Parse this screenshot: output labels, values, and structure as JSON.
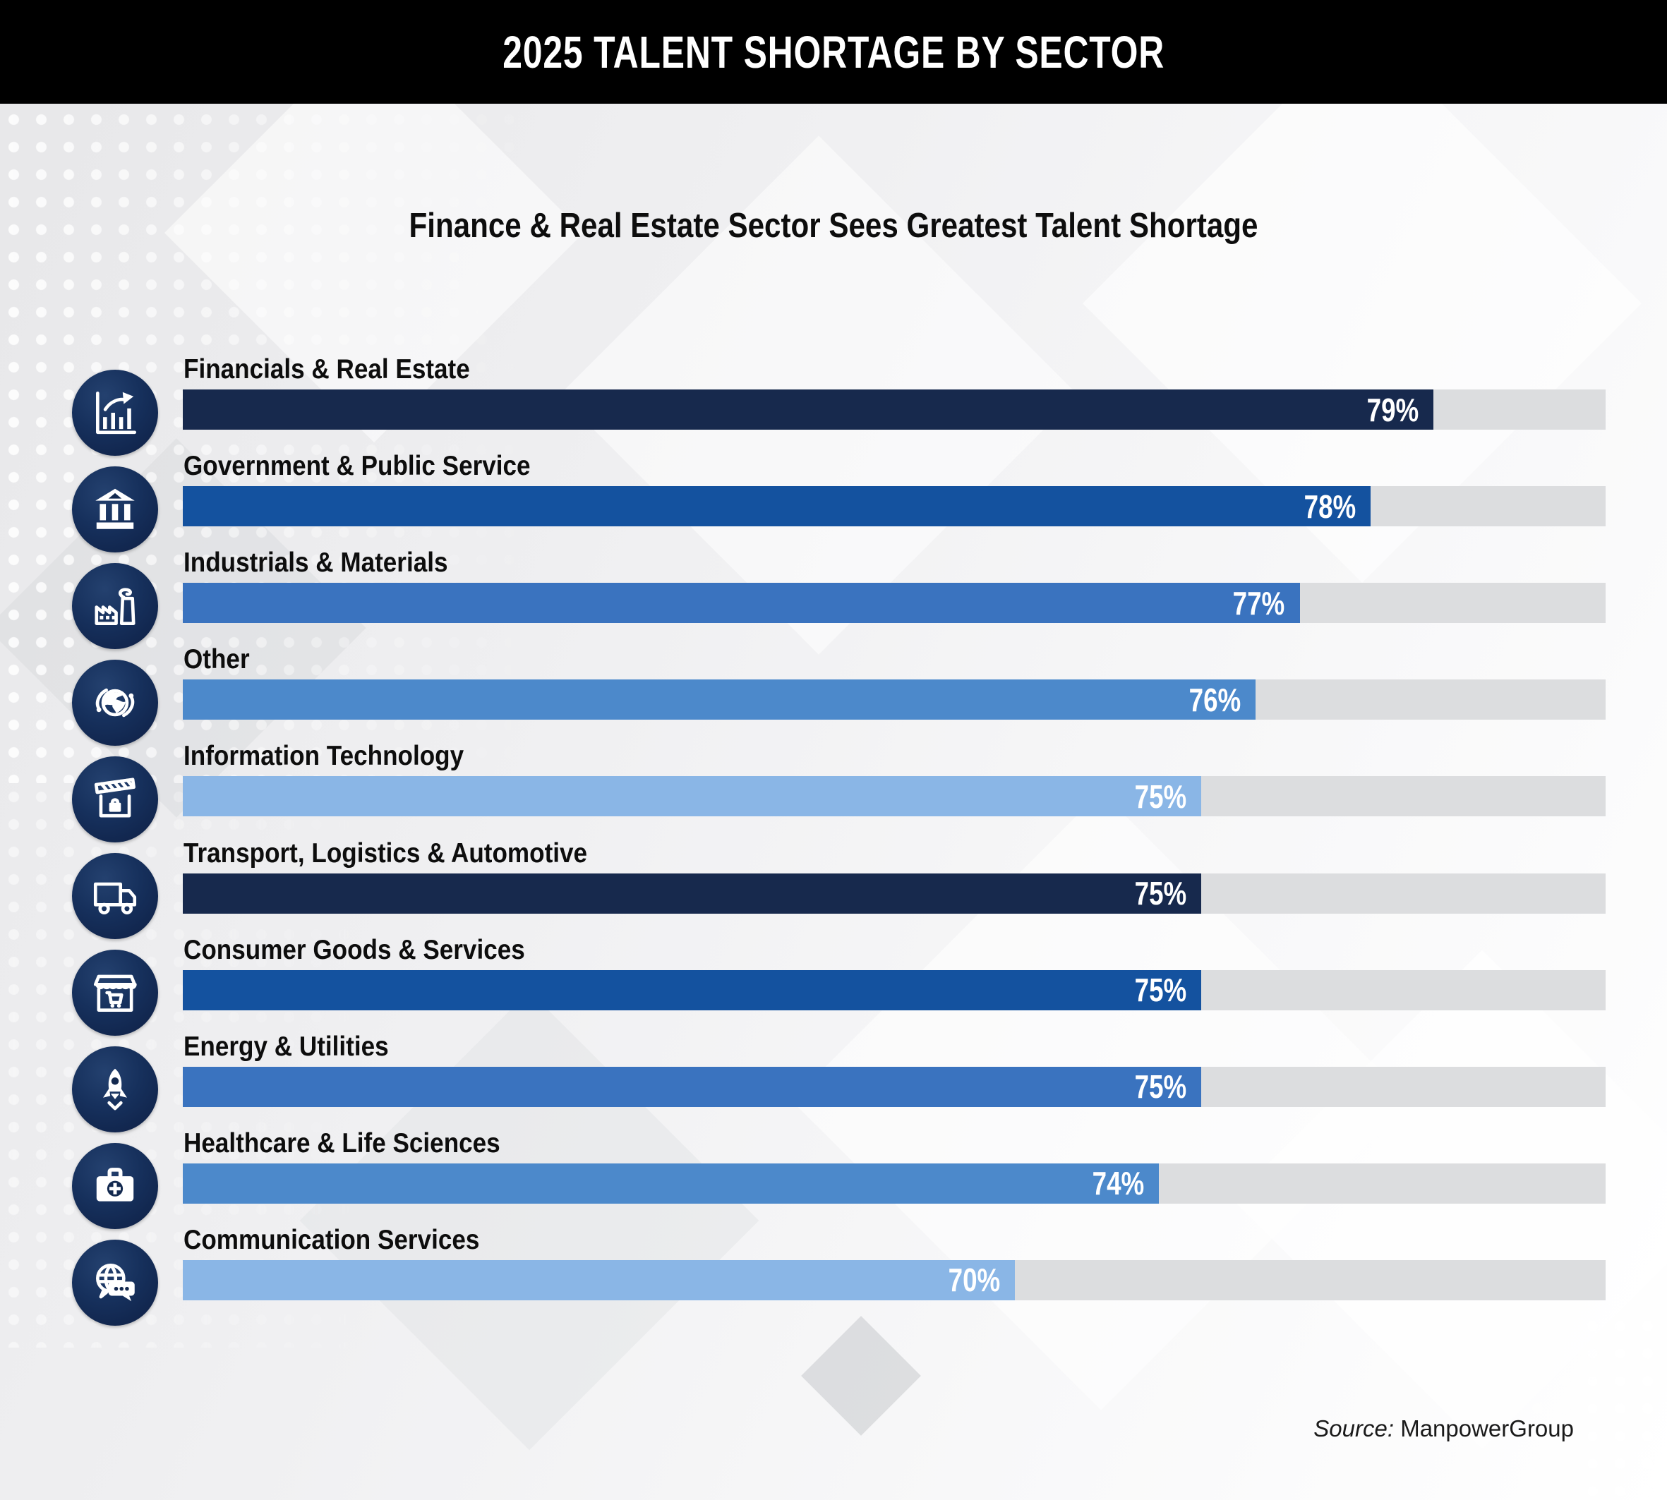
{
  "header": {
    "title": "2025 TALENT SHORTAGE BY SECTOR"
  },
  "subtitle": "Finance & Real Estate Sector Sees Greatest Talent Shortage",
  "source": {
    "prefix": "Source:",
    "name": "ManpowerGroup"
  },
  "colors": {
    "header_bg": "#000000",
    "header_text": "#ffffff",
    "track": "#dcdddf",
    "icon_circle": "#13294f",
    "label_text": "#0d0d0d",
    "value_text": "#ffffff"
  },
  "chart_data": {
    "type": "bar",
    "orientation": "horizontal",
    "title": "Finance & Real Estate Sector Sees Greatest Talent Shortage",
    "xlabel": "",
    "ylabel": "",
    "xlim": [
      0,
      100
    ],
    "grid": false,
    "legend": false,
    "categories": [
      "Financials & Real Estate",
      "Government & Public Service",
      "Industrials & Materials",
      "Other",
      "Information Technology",
      "Transport, Logistics & Automotive",
      "Consumer Goods & Services",
      "Energy & Utilities",
      "Healthcare & Life Sciences",
      "Communication Services"
    ],
    "values": [
      79,
      78,
      77,
      76,
      75,
      75,
      75,
      75,
      74,
      70
    ],
    "value_labels": [
      "79%",
      "78%",
      "77%",
      "76%",
      "75%",
      "75%",
      "75%",
      "75%",
      "74%",
      "70%"
    ],
    "bar_colors": [
      "#17294d",
      "#14529f",
      "#3a73bf",
      "#4c89cb",
      "#8ab6e6",
      "#17294d",
      "#14529f",
      "#3a73bf",
      "#4c89cb",
      "#8ab6e6"
    ],
    "bar_fill_ratios": [
      0.879,
      0.835,
      0.785,
      0.754,
      0.716,
      0.716,
      0.716,
      0.716,
      0.686,
      0.585
    ],
    "icons": [
      "chart-growth-icon",
      "bank-icon",
      "factory-icon",
      "globe-orbit-icon",
      "awning-briefcase-icon",
      "truck-icon",
      "storefront-cart-icon",
      "rocket-icon",
      "first-aid-kit-icon",
      "globe-chat-icon"
    ]
  }
}
